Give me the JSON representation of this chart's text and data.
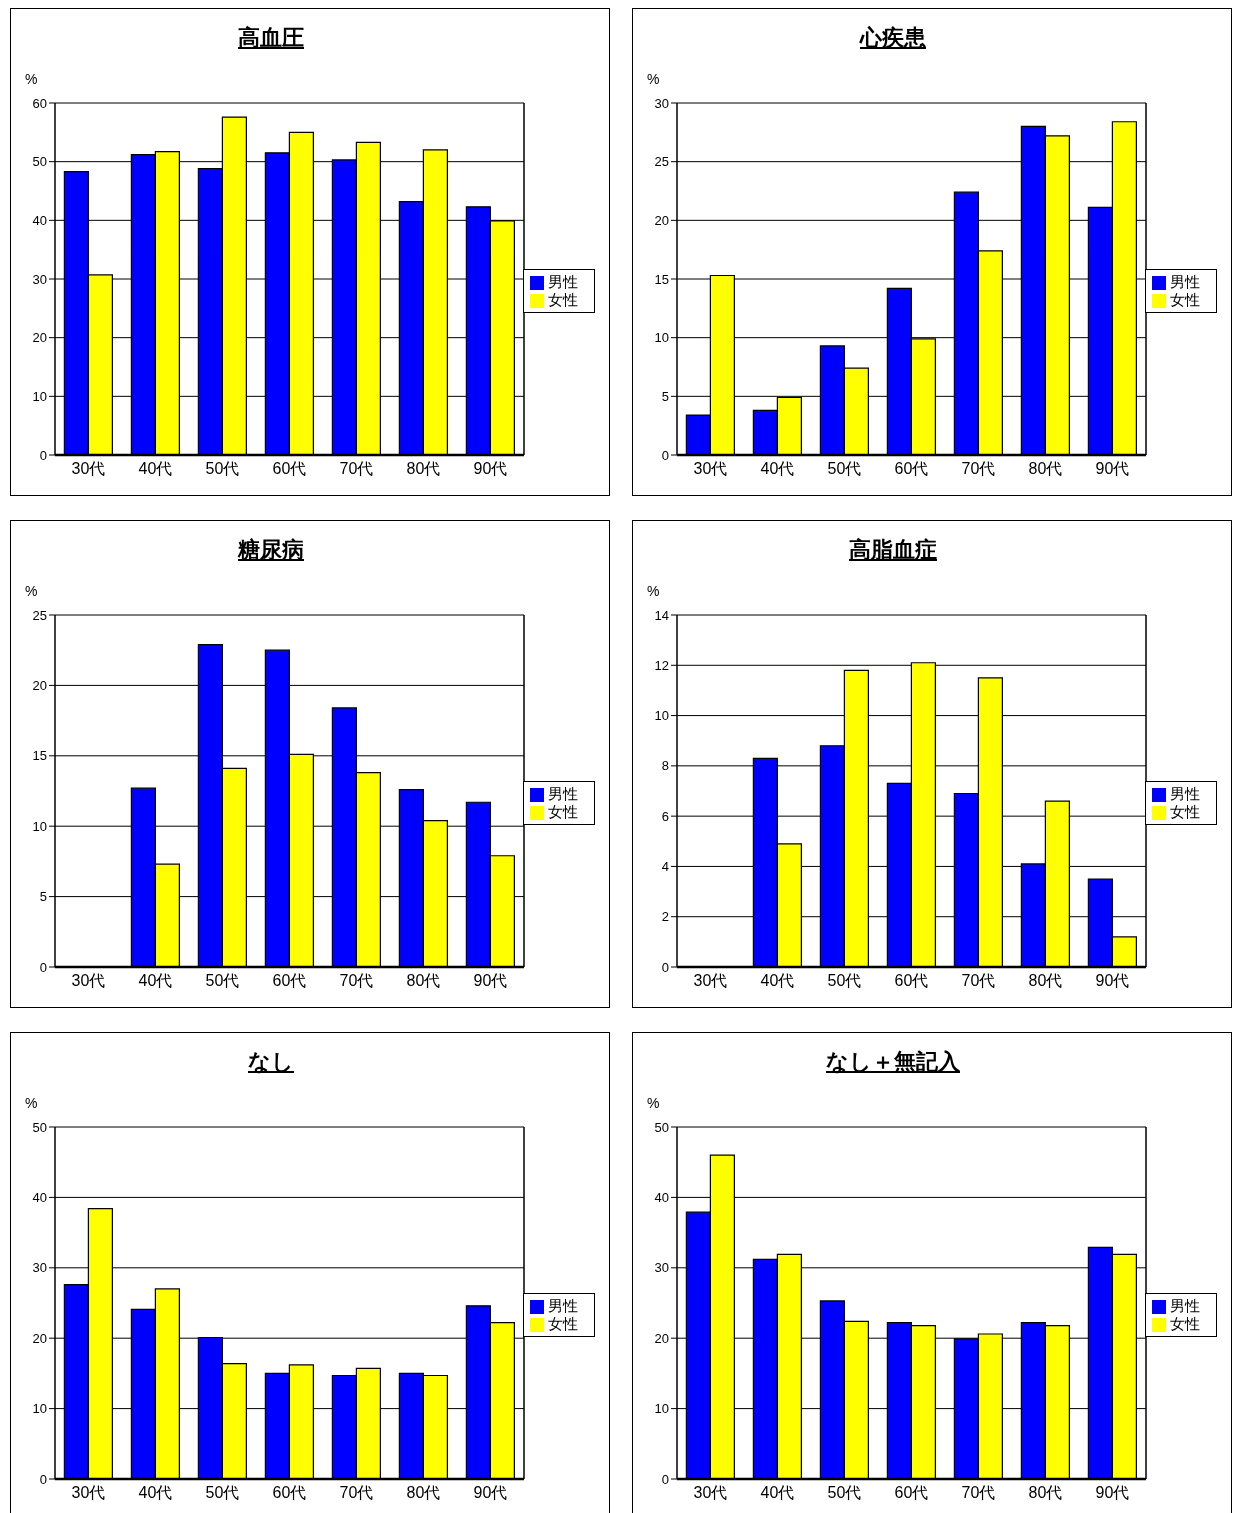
{
  "chart_data": [
    {
      "type": "bar",
      "title": "高血圧",
      "ylabel": "%",
      "categories": [
        "30代",
        "40代",
        "50代",
        "60代",
        "70代",
        "80代",
        "90代"
      ],
      "series": [
        {
          "name": "男性",
          "color": "#0000ff",
          "values": [
            48.3,
            51.2,
            48.8,
            51.5,
            50.3,
            43.2,
            42.3
          ]
        },
        {
          "name": "女性",
          "color": "#ffff00",
          "values": [
            30.7,
            51.7,
            57.6,
            55.0,
            53.3,
            52.0,
            39.9
          ]
        }
      ],
      "ylim": [
        0,
        60
      ],
      "yticks": [
        0,
        10,
        20,
        30,
        40,
        50,
        60
      ],
      "grid": "y",
      "legend": "right"
    },
    {
      "type": "bar",
      "title": "心疾患",
      "ylabel": "%",
      "categories": [
        "30代",
        "40代",
        "50代",
        "60代",
        "70代",
        "80代",
        "90代"
      ],
      "series": [
        {
          "name": "男性",
          "color": "#0000ff",
          "values": [
            3.4,
            3.8,
            9.3,
            14.2,
            22.4,
            28.0,
            21.1
          ]
        },
        {
          "name": "女性",
          "color": "#ffff00",
          "values": [
            15.3,
            4.9,
            7.4,
            9.9,
            17.4,
            27.2,
            28.4
          ]
        }
      ],
      "ylim": [
        0,
        30
      ],
      "yticks": [
        0,
        5,
        10,
        15,
        20,
        25,
        30
      ],
      "grid": "y",
      "legend": "right"
    },
    {
      "type": "bar",
      "title": "糖尿病",
      "ylabel": "%",
      "categories": [
        "30代",
        "40代",
        "50代",
        "60代",
        "70代",
        "80代",
        "90代"
      ],
      "series": [
        {
          "name": "男性",
          "color": "#0000ff",
          "values": [
            0,
            12.7,
            22.9,
            22.5,
            18.4,
            12.6,
            11.7
          ]
        },
        {
          "name": "女性",
          "color": "#ffff00",
          "values": [
            0,
            7.3,
            14.1,
            15.1,
            13.8,
            10.4,
            7.9
          ]
        }
      ],
      "ylim": [
        0,
        25
      ],
      "yticks": [
        0,
        5,
        10,
        15,
        20,
        25
      ],
      "grid": "y",
      "legend": "right"
    },
    {
      "type": "bar",
      "title": "高脂血症",
      "ylabel": "%",
      "categories": [
        "30代",
        "40代",
        "50代",
        "60代",
        "70代",
        "80代",
        "90代"
      ],
      "series": [
        {
          "name": "男性",
          "color": "#0000ff",
          "values": [
            0,
            8.3,
            8.8,
            7.3,
            6.9,
            4.1,
            3.5
          ]
        },
        {
          "name": "女性",
          "color": "#ffff00",
          "values": [
            0,
            4.9,
            11.8,
            12.1,
            11.5,
            6.6,
            1.2
          ]
        }
      ],
      "ylim": [
        0,
        14
      ],
      "yticks": [
        0,
        2,
        4,
        6,
        8,
        10,
        12,
        14
      ],
      "grid": "y",
      "legend": "right"
    },
    {
      "type": "bar",
      "title": "なし",
      "ylabel": "%",
      "categories": [
        "30代",
        "40代",
        "50代",
        "60代",
        "70代",
        "80代",
        "90代"
      ],
      "series": [
        {
          "name": "男性",
          "color": "#0000ff",
          "values": [
            27.6,
            24.1,
            20.1,
            15.0,
            14.7,
            15.0,
            24.6
          ]
        },
        {
          "name": "女性",
          "color": "#ffff00",
          "values": [
            38.4,
            27.0,
            16.4,
            16.2,
            15.7,
            14.7,
            22.2
          ]
        }
      ],
      "ylim": [
        0,
        50
      ],
      "yticks": [
        0,
        10,
        20,
        30,
        40,
        50
      ],
      "grid": "y",
      "legend": "right"
    },
    {
      "type": "bar",
      "title": "なし＋無記入",
      "ylabel": "%",
      "categories": [
        "30代",
        "40代",
        "50代",
        "60代",
        "70代",
        "80代",
        "90代"
      ],
      "series": [
        {
          "name": "男性",
          "color": "#0000ff",
          "values": [
            37.9,
            31.2,
            25.3,
            22.2,
            19.9,
            22.2,
            32.9
          ]
        },
        {
          "name": "女性",
          "color": "#ffff00",
          "values": [
            46.0,
            31.9,
            22.4,
            21.8,
            20.6,
            21.8,
            31.9
          ]
        }
      ],
      "ylim": [
        0,
        50
      ],
      "yticks": [
        0,
        10,
        20,
        30,
        40,
        50
      ],
      "grid": "y",
      "legend": "right"
    }
  ]
}
